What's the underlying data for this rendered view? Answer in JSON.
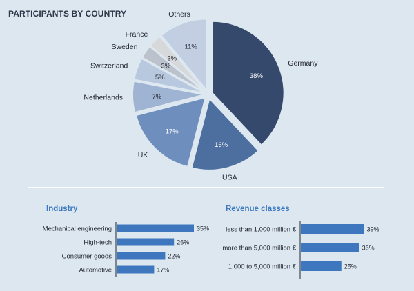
{
  "page": {
    "title": "PARTICIPANTS BY COUNTRY"
  },
  "colors": {
    "background": "#dde7f0",
    "accent": "#3a78bf",
    "bar": "#3e77bd"
  },
  "chart_data": [
    {
      "type": "pie",
      "title": "PARTICIPANTS BY COUNTRY",
      "unit": "%",
      "slices": [
        {
          "label": "Germany",
          "value": 38,
          "color": "#34496b"
        },
        {
          "label": "USA",
          "value": 16,
          "color": "#4d6f9f"
        },
        {
          "label": "UK",
          "value": 17,
          "color": "#6e8fbd"
        },
        {
          "label": "Netherlands",
          "value": 7,
          "color": "#9fb4d3"
        },
        {
          "label": "Switzerland",
          "value": 5,
          "color": "#b8c8de"
        },
        {
          "label": "Sweden",
          "value": 3,
          "color": "#bcc2cc"
        },
        {
          "label": "France",
          "value": 3,
          "color": "#d7d8da"
        },
        {
          "label": "Others",
          "value": 11,
          "color": "#c2cfe2"
        }
      ]
    },
    {
      "type": "bar",
      "orientation": "horizontal",
      "title": "Industry",
      "unit": "%",
      "categories": [
        "Mechanical engineering",
        "High-tech",
        "Consumer goods",
        "Automotive"
      ],
      "values": [
        35,
        26,
        22,
        17
      ]
    },
    {
      "type": "bar",
      "orientation": "horizontal",
      "title": "Revenue classes",
      "unit": "%",
      "categories": [
        "less than 1,000 million €",
        "more than 5,000 million €",
        "1,000 to 5,000 million €"
      ],
      "values": [
        39,
        36,
        25
      ]
    }
  ]
}
